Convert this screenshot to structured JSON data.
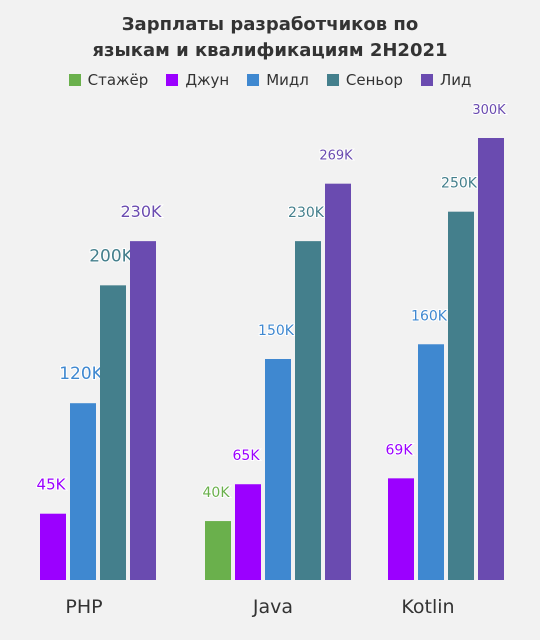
{
  "chart_data": {
    "type": "bar",
    "title_lines": [
      "Зарплаты разработчиков по",
      "языкам и квалификациям 2H2021"
    ],
    "xlabel": "",
    "ylabel": "",
    "categories": [
      "PHP",
      "Java",
      "Kotlin"
    ],
    "series": [
      {
        "name": "Стажёр",
        "color": "#6ab04c",
        "values": [
          null,
          40,
          null
        ],
        "labels": [
          "",
          "40K",
          ""
        ]
      },
      {
        "name": "Джун",
        "color": "#9b00ff",
        "values": [
          45,
          65,
          69
        ],
        "labels": [
          "45K",
          "65K",
          "69K"
        ]
      },
      {
        "name": "Мидл",
        "color": "#3f88d0",
        "values": [
          120,
          150,
          160
        ],
        "labels": [
          "120K",
          "150K",
          "160K"
        ]
      },
      {
        "name": "Сеньор",
        "color": "#447f8c",
        "values": [
          200,
          230,
          250
        ],
        "labels": [
          "200K",
          "230K",
          "250K"
        ]
      },
      {
        "name": "Лид",
        "color": "#6a4bb0",
        "values": [
          230,
          269,
          300
        ],
        "labels": [
          "230K",
          "269K",
          "300K"
        ]
      }
    ],
    "ylim": [
      0,
      300
    ],
    "legend_position": "top",
    "grid": false
  }
}
